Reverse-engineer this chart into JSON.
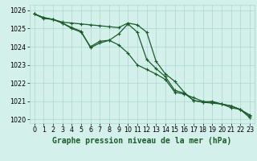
{
  "xlabel": "Graphe pression niveau de la mer (hPa)",
  "x_ticks": [
    0,
    1,
    2,
    3,
    4,
    5,
    6,
    7,
    8,
    9,
    10,
    11,
    12,
    13,
    14,
    15,
    16,
    17,
    18,
    19,
    20,
    21,
    22,
    23
  ],
  "ylim": [
    1019.8,
    1026.3
  ],
  "yticks": [
    1020,
    1021,
    1022,
    1023,
    1024,
    1025,
    1026
  ],
  "background_color": "#d4f0ea",
  "grid_color": "#a8d8d0",
  "line_color": "#1a5c2a",
  "series": [
    [
      1025.8,
      1025.6,
      1025.5,
      1025.35,
      1025.3,
      1025.25,
      1025.2,
      1025.15,
      1025.1,
      1025.05,
      1025.3,
      1025.2,
      1024.8,
      1023.2,
      1022.5,
      1022.1,
      1021.5,
      1021.05,
      1020.95,
      1020.9,
      1020.85,
      1020.75,
      1020.55,
      1020.25
    ],
    [
      1025.8,
      1025.6,
      1025.5,
      1025.3,
      1025.0,
      1024.8,
      1024.0,
      1024.3,
      1024.35,
      1024.7,
      1025.25,
      1024.8,
      1023.3,
      1022.8,
      1022.35,
      1021.6,
      1021.45,
      1021.05,
      1020.95,
      1021.0,
      1020.85,
      1020.75,
      1020.55,
      1020.2
    ],
    [
      1025.8,
      1025.55,
      1025.5,
      1025.3,
      1025.05,
      1024.85,
      1023.95,
      1024.2,
      1024.35,
      1024.1,
      1023.65,
      1023.0,
      1022.75,
      1022.5,
      1022.2,
      1021.5,
      1021.4,
      1021.2,
      1021.0,
      1020.95,
      1020.85,
      1020.65,
      1020.55,
      1020.1
    ]
  ],
  "markersize": 2.5,
  "linewidth": 0.9,
  "label_fontsize": 7,
  "tick_fontsize": 5.8
}
